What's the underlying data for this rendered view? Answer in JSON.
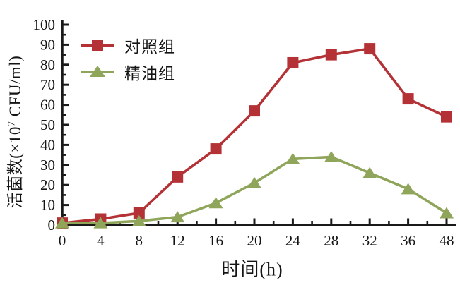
{
  "chart_data": {
    "type": "line",
    "title": "",
    "xlabel": "时间(h)",
    "ylabel": "活菌数(×10⁷ CFU/ml)",
    "ylabel_parts": {
      "pre": "活菌数(×10",
      "sup": "7",
      "post": " CFU/ml)"
    },
    "x_categories": [
      "0",
      "4",
      "8",
      "12",
      "16",
      "20",
      "24",
      "28",
      "32",
      "36",
      "48"
    ],
    "series": [
      {
        "name": "对照组",
        "marker": "square",
        "color": "#b43236",
        "values": [
          1,
          3,
          6,
          24,
          38,
          57,
          81,
          85,
          88,
          63,
          54
        ]
      },
      {
        "name": "精油组",
        "marker": "triangle",
        "color": "#8fa55a",
        "values": [
          1,
          1,
          2,
          4,
          11,
          21,
          33,
          34,
          26,
          18,
          6
        ]
      }
    ],
    "ylim": [
      0,
      100
    ],
    "y_ticks": [
      0,
      10,
      20,
      30,
      40,
      50,
      60,
      70,
      80,
      90,
      100
    ],
    "y_minor_step": 5,
    "x_minor_ticks_between_majors": true,
    "grid": false,
    "legend_position": "top-left-inside"
  },
  "colors": {
    "axis": "#1a1a1a",
    "text": "#141414",
    "background": "#ffffff",
    "control_series": "#b43236",
    "oil_series": "#8fa55a"
  }
}
